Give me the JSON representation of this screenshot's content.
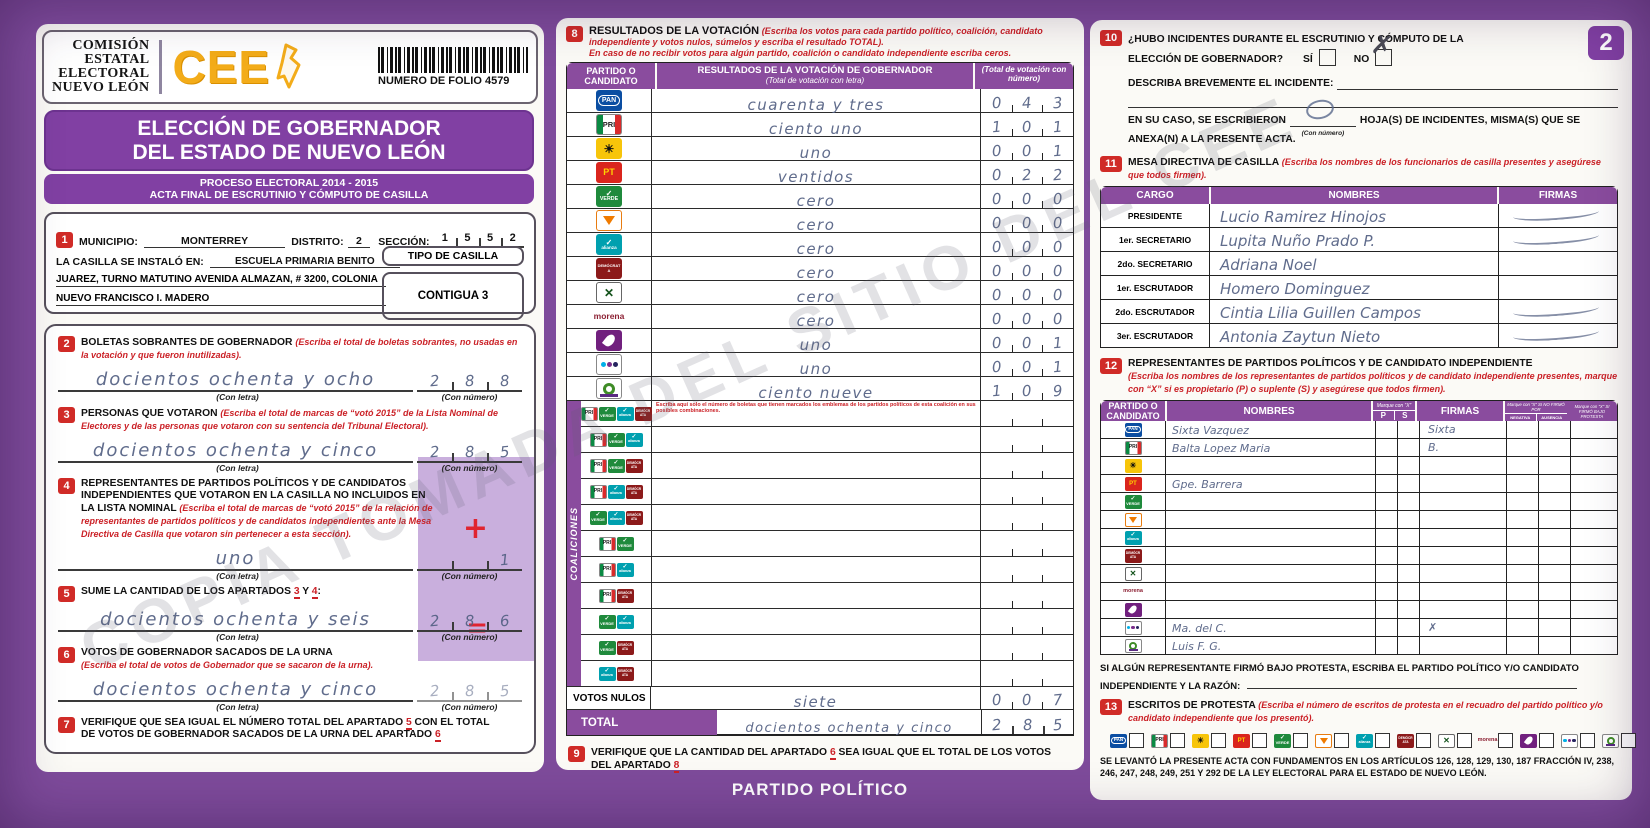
{
  "watermark": "COPIA TOMADA DEL SITIO DEL CEE",
  "header": {
    "org_lines": [
      "COMISIÓN",
      "ESTATAL",
      "ELECTORAL",
      "NUEVO LEÓN"
    ],
    "logo_text": "CEE",
    "folio_label": "NUMERO DE FOLIO",
    "folio_number": "4579"
  },
  "title": {
    "line1": "ELECCIÓN DE GOBERNADOR",
    "line2": "DEL ESTADO DE NUEVO LEÓN",
    "sub1": "PROCESO ELECTORAL  2014 - 2015",
    "sub2": "ACTA FINAL DE ESCRUTINIO Y CÓMPUTO DE CASILLA"
  },
  "labels": {
    "con_letra": "(Con letra)",
    "con_numero": "(Con número)"
  },
  "s1": {
    "no": "1",
    "municipio_label": "MUNICIPIO:",
    "municipio": "MONTERREY",
    "distrito_label": "DISTRITO:",
    "distrito": "2",
    "seccion_label": "SECCIÓN:",
    "seccion": "1552",
    "casilla_label": "LA CASILLA SE INSTALÓ EN:",
    "casilla_l1": "ESCUELA PRIMARIA BENITO",
    "casilla_l2": "JUAREZ, TURNO MATUTINO AVENIDA ALMAZAN, # 3200, COLONIA",
    "casilla_l3": "NUEVO FRANCISCO I. MADERO",
    "tipo_label": "TIPO DE CASILLA",
    "tipo": "CONTIGUA 3"
  },
  "s2": {
    "no": "2",
    "title": "BOLETAS SOBRANTES DE GOBERNADOR",
    "note": "(Escriba el total de boletas sobrantes, no usadas en la votación y que fueron inutilizadas).",
    "letra": "docientos ochenta y ocho",
    "num": "288"
  },
  "s3": {
    "no": "3",
    "title": "PERSONAS QUE VOTARON",
    "note": "(Escriba el total de marcas de “votó 2015” de la Lista Nominal de Electores y de las personas que votaron con su sentencia del Tribunal Electoral).",
    "letra": "docientos ochenta y cinco",
    "num": "285"
  },
  "s4": {
    "no": "4",
    "title": "REPRESENTANTES DE PARTIDOS POLÍTICOS Y DE CANDIDATOS INDEPENDIENTES QUE VOTARON EN LA CASILLA NO INCLUIDOS EN LA LISTA NOMINAL",
    "note": "(Escriba el total de marcas de “votó 2015” de la relación de representantes de partidos políticos y de candidatos independientes ante la Mesa Directiva de Casilla que votaron sin pertenecer a esta sección).",
    "letra": "uno",
    "num": "1",
    "plus": "+"
  },
  "s5": {
    "no": "5",
    "t1": "SUME LA CANTIDAD DE LOS APARTADOS ",
    "t2": "3",
    "t3": " Y ",
    "t4": "4",
    "t5": ":",
    "letra": "docientos ochenta y seis",
    "num": "286",
    "equals": "="
  },
  "s6": {
    "no": "6",
    "title": "VOTOS DE GOBERNADOR SACADOS DE LA URNA",
    "note": "(Escriba el total de votos de Gobernador que se sacaron de la urna).",
    "letra": "docientos ochenta y cinco",
    "num": "285"
  },
  "s7": {
    "no": "7",
    "t1": "VERIFIQUE QUE SEA IGUAL EL NÚMERO TOTAL DEL APARTADO ",
    "t2": "5",
    "t3": " CON EL TOTAL DE VOTOS DE GOBERNADOR SACADOS DE LA URNA DEL APARTADO ",
    "t4": "6"
  },
  "results": {
    "no": "8",
    "title": "RESULTADOS DE LA VOTACIÓN",
    "note1": "(Escriba los votos para cada partido político, coalición, candidato independiente y votos nulos, súmelos y escriba el resultado TOTAL).",
    "note2": "En caso de no recibir votos para algún partido, coalición o candidato independiente escriba ceros.",
    "col_party": "PARTIDO O CANDIDATO",
    "col_letra_1": "RESULTADOS DE LA VOTACIÓN DE GOBERNADOR",
    "col_letra_2": "(Total de votación con letra)",
    "col_num": "(Total de votación con número)",
    "rows": [
      {
        "party": "PAN",
        "logo": "pan",
        "letra": "cuarenta y tres",
        "num": "043"
      },
      {
        "party": "PRI",
        "logo": "pri",
        "letra": "ciento uno",
        "num": "101"
      },
      {
        "party": "PRD",
        "logo": "prd",
        "letra": "uno",
        "num": "001"
      },
      {
        "party": "PT",
        "logo": "pt",
        "letra": "ventidos",
        "num": "022"
      },
      {
        "party": "Partido Verde",
        "logo": "verde",
        "letra": "cero",
        "num": "000"
      },
      {
        "party": "Movimiento Ciudadano",
        "logo": "mc",
        "letra": "cero",
        "num": "000"
      },
      {
        "party": "Nueva Alianza",
        "logo": "na",
        "letra": "cero",
        "num": "000"
      },
      {
        "party": "Demócrata",
        "logo": "dem",
        "letra": "cero",
        "num": "000"
      },
      {
        "party": "Cruzada Ciudadana",
        "logo": "cru",
        "letra": "cero",
        "num": "000"
      },
      {
        "party": "morena",
        "logo": "morena",
        "letra": "cero",
        "num": "000"
      },
      {
        "party": "Humanista",
        "logo": "hum",
        "letra": "uno",
        "num": "001"
      },
      {
        "party": "Encuentro Social",
        "logo": "es",
        "letra": "uno",
        "num": "001"
      },
      {
        "party": "Candidato Independiente",
        "logo": "ind",
        "letra": "ciento nueve",
        "num": "109"
      }
    ],
    "coalition_label": "COALICIONES",
    "coalition_note": "Escriba aquí solo el número de boletas que tienen marcados los emblemas de los partidos políticos de esta coalición en sus posibles combinaciones.",
    "coalitions": [
      {
        "logos": "pri verde na dem"
      },
      {
        "logos": "pri verde na"
      },
      {
        "logos": "pri verde dem"
      },
      {
        "logos": "pri na dem"
      },
      {
        "logos": "verde na dem"
      },
      {
        "logos": "pri verde"
      },
      {
        "logos": "pri na"
      },
      {
        "logos": "pri dem"
      },
      {
        "logos": "verde na"
      },
      {
        "logos": "verde dem"
      },
      {
        "logos": "na dem"
      }
    ],
    "nulos_label": "VOTOS NULOS",
    "nulos_letra": "siete",
    "nulos_num": "007",
    "total_label": "TOTAL",
    "total_letra": "docientos ochenta y cinco",
    "total_num": "285"
  },
  "s9": {
    "no": "9",
    "t1": "VERIFIQUE QUE LA CANTIDAD DEL APARTADO ",
    "t2": "6",
    "t3": " SEA IGUAL QUE EL TOTAL DE LOS VOTOS DEL APARTADO ",
    "t4": "8"
  },
  "footer_band": "PARTIDO POLÍTICO",
  "page_badge": "2",
  "s10": {
    "no": "10",
    "q1": "¿HUBO INCIDENTES DURANTE EL ESCRUTINIO Y CÓMPUTO DE LA",
    "q2": "ELECCIÓN DE GOBERNADOR?",
    "si": "SÍ",
    "no_label": "NO",
    "no_mark": "✗",
    "describe": "DESCRIBA BREVEMENTE EL INCIDENTE:",
    "encaso1": "EN SU CASO, SE ESCRIBIERON",
    "con_numero": "(Con número)",
    "encaso2": "HOJA(S) DE INCIDENTES, MISMA(S) QUE SE",
    "encaso3": "ANEXA(N) A LA PRESENTE ACTA."
  },
  "s11": {
    "no": "11",
    "title": "MESA DIRECTIVA DE CASILLA",
    "note": "(Escriba los nombres de los funcionarios de casilla presentes y asegúrese que todos firmen).",
    "col_cargo": "CARGO",
    "col_nombres": "NOMBRES",
    "col_firmas": "FIRMAS",
    "rows": [
      {
        "cargo": "PRESIDENTE",
        "nombre": "Lucio Ramirez Hinojos",
        "sig": true
      },
      {
        "cargo": "1er. SECRETARIO",
        "nombre": "Lupita Nuño Prado P.",
        "sig": true
      },
      {
        "cargo": "2do. SECRETARIO",
        "nombre": "Adriana Noel",
        "sig": false
      },
      {
        "cargo": "1er. ESCRUTADOR",
        "nombre": "Homero Dominguez",
        "sig": false
      },
      {
        "cargo": "2do. ESCRUTADOR",
        "nombre": "Cintia Lilia Guillen Campos",
        "sig": true
      },
      {
        "cargo": "3er. ESCRUTADOR",
        "nombre": "Antonia Zaytun Nieto",
        "sig": true
      }
    ]
  },
  "s12": {
    "no": "12",
    "title": "REPRESENTANTES DE PARTIDOS POLÍTICOS Y DE CANDIDATO INDEPENDIENTE",
    "note": "(Escriba los nombres de los representantes de partidos políticos y de candidato independiente presentes, marque con “X” si es propietario (P) o suplente (S) y asegúrese que todos firmen).",
    "col_party": "PARTIDO O CANDIDATO",
    "col_nombres": "NOMBRES",
    "col_marque": "Marque con “X”",
    "col_p": "P",
    "col_s": "S",
    "col_firmas": "FIRMAS",
    "col_nofirmo": "Marque con “X” SI NO FIRMÓ POR",
    "col_negativa": "NEGATIVA",
    "col_ausencia": "AUSENCIA",
    "col_protesta": "Marque con “X” SI FIRMÓ BAJO PROTESTA",
    "rows": [
      {
        "logo": "pan",
        "nombre": "Sixta Vazquez",
        "firma": "Sixta"
      },
      {
        "logo": "pri",
        "nombre": "Balta Lopez Maria",
        "firma": "B."
      },
      {
        "logo": "prd",
        "nombre": "",
        "firma": ""
      },
      {
        "logo": "pt",
        "nombre": "Gpe. Barrera",
        "firma": ""
      },
      {
        "logo": "verde",
        "nombre": "",
        "firma": ""
      },
      {
        "logo": "mc",
        "nombre": "",
        "firma": ""
      },
      {
        "logo": "na",
        "nombre": "",
        "firma": ""
      },
      {
        "logo": "dem",
        "nombre": "",
        "firma": ""
      },
      {
        "logo": "cru",
        "nombre": "",
        "firma": ""
      },
      {
        "logo": "morena",
        "nombre": "",
        "firma": ""
      },
      {
        "logo": "hum",
        "nombre": "",
        "firma": ""
      },
      {
        "logo": "es",
        "nombre": "Ma. del C.",
        "firma": "✗"
      },
      {
        "logo": "ind",
        "nombre": "Luis F. G.",
        "firma": ""
      }
    ]
  },
  "protesta": {
    "l1": "SI ALGÚN REPRESENTANTE FIRMÓ BAJO PROTESTA, ESCRIBA EL PARTIDO POLÍTICO Y/O CANDIDATO",
    "l2": "INDEPENDIENTE Y LA RAZÓN:"
  },
  "s13": {
    "no": "13",
    "title": "ESCRITOS DE PROTESTA",
    "note": "(Escriba el número de escritos de protesta en el recuadro del partido político y/o candidato independiente que los presentó).",
    "logos": [
      "pan",
      "pri",
      "prd",
      "pt",
      "verde",
      "mc",
      "na",
      "dem",
      "cru",
      "morena",
      "hum",
      "es",
      "ind"
    ]
  },
  "legal": "SE LEVANTÓ LA PRESENTE ACTA CON FUNDAMENTOS EN LOS ARTÍCULOS 126, 128, 129, 130, 187 FRACCIÓN IV, 238, 246, 247, 248, 249, 251 Y 292 DE LA LEY ELECTORAL PARA EL ESTADO DE NUEVO LEÓN.",
  "logo_labels": {
    "pan": "PAN",
    "pri": "PRI",
    "prd": "☀",
    "pt": "PT",
    "verde": "VERDE",
    "mc": "",
    "na": "alianza",
    "dem": "DEMÓCRATA",
    "cru": "✕",
    "morena": "morena",
    "hum": "",
    "es": "",
    "ind": ""
  }
}
